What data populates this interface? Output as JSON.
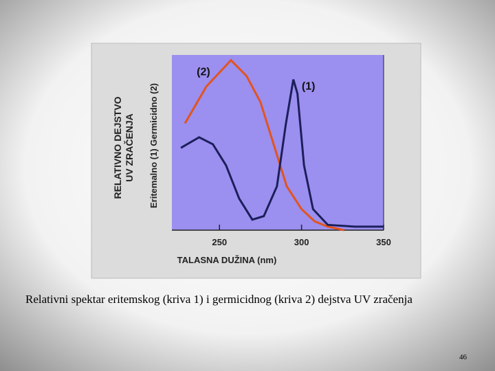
{
  "chart_data": {
    "type": "line",
    "ylabel": [
      "RELATIVNO DEJSTVO",
      "UV ZRAČENJA"
    ],
    "ylabel_secondary": "Eritemalno (1)  Germicidno (2)",
    "xlabel": "TALASNA DUŽINA (nm)",
    "xlim": [
      221,
      350
    ],
    "xticks": [
      250,
      300,
      350
    ],
    "ylim": [
      0,
      1
    ],
    "plot_color": "#9b8ff0",
    "series": [
      {
        "name": "(2)",
        "color": "#e2541e",
        "x": [
          229,
          242,
          257,
          266.5,
          275,
          283,
          291,
          300,
          308,
          316,
          326
        ],
        "values": [
          0.61,
          0.82,
          0.97,
          0.88,
          0.73,
          0.49,
          0.25,
          0.12,
          0.05,
          0.02,
          0
        ]
      },
      {
        "name": "(1)",
        "color": "#1c1f5a",
        "x": [
          226.5,
          237.6,
          246,
          254,
          262,
          270,
          277,
          285,
          290.5,
          295,
          297.5,
          301.5,
          307,
          316,
          332.5,
          350
        ],
        "values": [
          0.47,
          0.53,
          0.49,
          0.37,
          0.18,
          0.06,
          0.08,
          0.25,
          0.61,
          0.86,
          0.78,
          0.37,
          0.12,
          0.03,
          0.02,
          0.02
        ]
      }
    ]
  },
  "caption": "Relativni spektar eritemskog (kriva 1) i germicidnog (kriva 2) dejstva UV zračenja",
  "page_number": "46"
}
